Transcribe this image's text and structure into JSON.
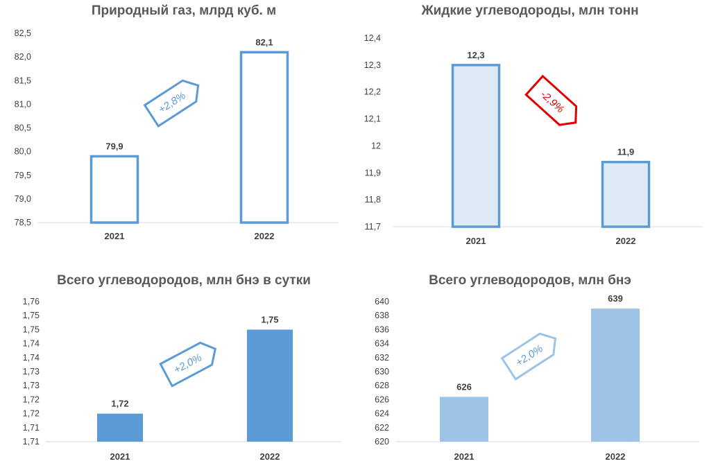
{
  "chart_data": [
    {
      "type": "bar",
      "title": "Природный газ, млрд куб. м",
      "categories": [
        "2021",
        "2022"
      ],
      "values": [
        79.9,
        82.1
      ],
      "value_labels": [
        "79,9",
        "82,1"
      ],
      "ylim": [
        78.5,
        82.5
      ],
      "yticks": [
        "78,5",
        "79,0",
        "79,5",
        "80,0",
        "80,5",
        "81,0",
        "81,5",
        "82,0",
        "82,5"
      ],
      "bar_style": "outline",
      "bar_fill": "#ffffff",
      "bar_stroke": "#5b9bd5",
      "change_label": "+2,8%",
      "change_color": "#5b9bd5",
      "change_direction": "up"
    },
    {
      "type": "bar",
      "title": "Жидкие углеводороды, млн тонн",
      "categories": [
        "2021",
        "2022"
      ],
      "values": [
        12.3,
        11.94
      ],
      "value_labels": [
        "12,3",
        "11,9"
      ],
      "ylim": [
        11.7,
        12.4
      ],
      "yticks": [
        "11,7",
        "11,8",
        "11,9",
        "12",
        "12,1",
        "12,2",
        "12,3",
        "12,4"
      ],
      "bar_style": "outline",
      "bar_fill": "#ddebf7",
      "bar_stroke": "#5b9bd5",
      "change_label": "-2,9%",
      "change_color": "#e00000",
      "change_direction": "down"
    },
    {
      "type": "bar",
      "title": "Всего углеводородов, млн бнэ в сутки",
      "categories": [
        "2021",
        "2022"
      ],
      "values": [
        1.72,
        1.75
      ],
      "value_labels": [
        "1,72",
        "1,75"
      ],
      "ylim": [
        1.71,
        1.76
      ],
      "yticks": [
        "1,71",
        "1,71",
        "1,72",
        "1,72",
        "1,73",
        "1,73",
        "1,74",
        "1,74",
        "1,75",
        "1,75",
        "1,76"
      ],
      "bar_style": "solid",
      "bar_fill": "#5b9bd5",
      "bar_stroke": "#5b9bd5",
      "change_label": "+2,0%",
      "change_color": "#5b9bd5",
      "change_direction": "up"
    },
    {
      "type": "bar",
      "title": "Всего углеводородов, млн бнэ",
      "categories": [
        "2021",
        "2022"
      ],
      "values": [
        626.4,
        639
      ],
      "value_labels": [
        "626",
        "639"
      ],
      "ylim": [
        620,
        640
      ],
      "yticks": [
        "620",
        "622",
        "624",
        "626",
        "628",
        "630",
        "632",
        "634",
        "636",
        "638",
        "640"
      ],
      "bar_style": "solid",
      "bar_fill": "#9dc3e6",
      "bar_stroke": "#9dc3e6",
      "change_label": "+2,0%",
      "change_color": "#9dc3e6",
      "change_text_color": "#5b9bd5",
      "change_direction": "up"
    }
  ]
}
